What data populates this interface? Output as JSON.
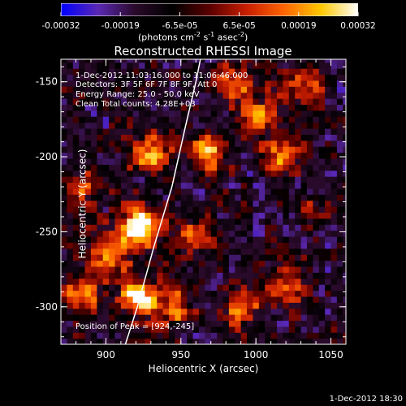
{
  "colorbar": {
    "ticks": [
      "-0.00032",
      "-0.00019",
      "-6.5e-05",
      "6.5e-05",
      "0.00019",
      "0.00032"
    ],
    "unit_prefix": "(photons cm",
    "unit_exp1": "-2",
    "unit_mid1": " s",
    "unit_exp2": "-1",
    "unit_mid2": " asec",
    "unit_exp3": "-2",
    "unit_suffix": ")",
    "colors": [
      "#0000ff",
      "#5a28b4",
      "#2a0a2a",
      "#000000",
      "#5a0000",
      "#c81e00",
      "#ff6400",
      "#ffc800",
      "#ffffff"
    ]
  },
  "annotations": {
    "time_range": "1-Dec-2012 11:03:16.000 to 11:06:46.000",
    "detectors": "Detectors: 3F 5F 6F 7F 8F 9F, Att 0",
    "energy": "Energy Range: 25.0 - 50.0 keV",
    "clean": "Clean     Total counts: 4.28E+03",
    "peak": "Position of Peak = [924,-245]"
  },
  "footer": {
    "timestamp": "1-Dec-2012 18:30"
  },
  "chart_data": {
    "type": "heatmap",
    "title": "Reconstructed RHESSI Image",
    "xlabel": "Heliocentric X (arcsec)",
    "ylabel": "Heliocentric Y (arcsec)",
    "xlim": [
      870,
      1060
    ],
    "ylim": [
      -325,
      -135
    ],
    "x_ticks": [
      900,
      950,
      1000,
      1050
    ],
    "y_ticks": [
      -300,
      -250,
      -200,
      -150
    ],
    "x_tick_labels": [
      "900",
      "950",
      "1000",
      "1050"
    ],
    "y_tick_labels": [
      "-300",
      "-250",
      "-200",
      "-150"
    ],
    "value_range": [
      -0.00032,
      0.00032
    ],
    "peak_position": [
      924,
      -245
    ],
    "limb": [
      [
        913,
        -325
      ],
      [
        921,
        -300
      ],
      [
        932,
        -260
      ],
      [
        944,
        -220
      ],
      [
        953,
        -180
      ],
      [
        960,
        -150
      ],
      [
        963,
        -135
      ]
    ],
    "sources": [
      {
        "x": 922,
        "y": -247,
        "intensity": 1.0
      },
      {
        "x": 921,
        "y": -293,
        "intensity": 0.85
      },
      {
        "x": 903,
        "y": -263,
        "intensity": 0.7
      },
      {
        "x": 931,
        "y": -198,
        "intensity": 0.65
      },
      {
        "x": 968,
        "y": -198,
        "intensity": 0.6
      },
      {
        "x": 1003,
        "y": -173,
        "intensity": 0.55
      },
      {
        "x": 883,
        "y": -290,
        "intensity": 0.55
      },
      {
        "x": 945,
        "y": -300,
        "intensity": 0.55
      },
      {
        "x": 984,
        "y": -150,
        "intensity": 0.5
      },
      {
        "x": 1017,
        "y": -200,
        "intensity": 0.45
      },
      {
        "x": 1020,
        "y": -285,
        "intensity": 0.55
      },
      {
        "x": 990,
        "y": -300,
        "intensity": 0.5
      },
      {
        "x": 960,
        "y": -253,
        "intensity": 0.45
      },
      {
        "x": 1032,
        "y": -150,
        "intensity": 0.4
      },
      {
        "x": 884,
        "y": -220,
        "intensity": 0.45
      },
      {
        "x": 1040,
        "y": -235,
        "intensity": 0.3
      }
    ]
  }
}
